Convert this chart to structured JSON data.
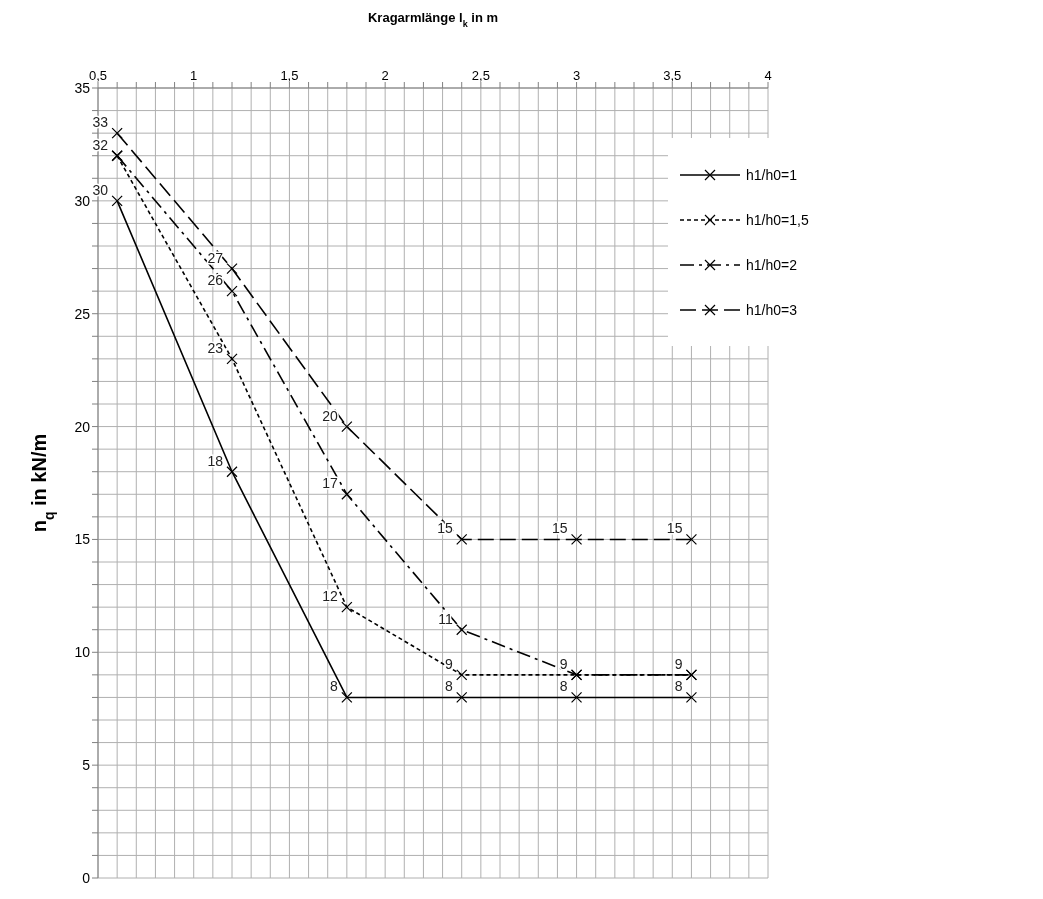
{
  "chart_data": {
    "type": "line",
    "xlabel": "Kragarmlänge l$_{k}$ in m",
    "ylabel": "n$_{q}$ in kN/m",
    "xlim": [
      0.5,
      4
    ],
    "ylim": [
      0,
      35
    ],
    "xticks": [
      {
        "value": 0.5,
        "label": "0,5"
      },
      {
        "value": 0.6,
        "label": null
      },
      {
        "value": 0.7,
        "label": null
      },
      {
        "value": 0.8,
        "label": null
      },
      {
        "value": 0.9,
        "label": null
      },
      1,
      {
        "value": 1.1,
        "label": null
      },
      {
        "value": 1.2,
        "label": null
      },
      {
        "value": 1.3,
        "label": null
      },
      {
        "value": 1.4,
        "label": null
      },
      {
        "value": 1.5,
        "label": "1,5"
      },
      {
        "value": 1.6,
        "label": null
      },
      {
        "value": 1.7,
        "label": null
      },
      {
        "value": 1.8,
        "label": null
      },
      {
        "value": 1.9,
        "label": null
      },
      2,
      {
        "value": 2.1,
        "label": null
      },
      {
        "value": 2.2,
        "label": null
      },
      {
        "value": 2.3,
        "label": null
      },
      {
        "value": 2.4,
        "label": null
      },
      {
        "value": 2.5,
        "label": "2,5"
      },
      {
        "value": 2.6,
        "label": null
      },
      {
        "value": 2.7,
        "label": null
      },
      {
        "value": 2.8,
        "label": null
      },
      {
        "value": 2.9,
        "label": null
      },
      3,
      {
        "value": 3.1,
        "label": null
      },
      {
        "value": 3.2,
        "label": null
      },
      {
        "value": 3.3,
        "label": null
      },
      {
        "value": 3.4,
        "label": null
      },
      {
        "value": 3.5,
        "label": "3,5"
      },
      {
        "value": 3.6,
        "label": null
      },
      {
        "value": 3.7,
        "label": null
      },
      {
        "value": 3.8,
        "label": null
      },
      {
        "value": 3.9,
        "label": null
      },
      4
    ],
    "yticks": [
      0,
      {
        "value": 1,
        "label": null
      },
      {
        "value": 2,
        "label": null
      },
      {
        "value": 3,
        "label": null
      },
      {
        "value": 4,
        "label": null
      },
      5,
      {
        "value": 6,
        "label": null
      },
      {
        "value": 7,
        "label": null
      },
      {
        "value": 8,
        "label": null
      },
      {
        "value": 9,
        "label": null
      },
      10,
      {
        "value": 11,
        "label": null
      },
      {
        "value": 12,
        "label": null
      },
      {
        "value": 13,
        "label": null
      },
      {
        "value": 14,
        "label": null
      },
      15,
      {
        "value": 16,
        "label": null
      },
      {
        "value": 17,
        "label": null
      },
      {
        "value": 18,
        "label": null
      },
      {
        "value": 19,
        "label": null
      },
      20,
      {
        "value": 21,
        "label": null
      },
      {
        "value": 22,
        "label": null
      },
      {
        "value": 23,
        "label": null
      },
      {
        "value": 24,
        "label": null
      },
      25,
      {
        "value": 26,
        "label": null
      },
      {
        "value": 27,
        "label": null
      },
      {
        "value": 28,
        "label": null
      },
      {
        "value": 29,
        "label": null
      },
      30,
      {
        "value": 31,
        "label": null
      },
      {
        "value": 32,
        "label": null
      },
      {
        "value": 33,
        "label": null
      },
      {
        "value": 34,
        "label": null
      },
      35
    ],
    "x": [
      0.6,
      1.2,
      1.8,
      2.4,
      3,
      3.6
    ],
    "grid": true,
    "legend": "top right",
    "marker": "cross",
    "series": [
      {
        "name": "h1/h0=1",
        "color": "#000000",
        "line_style": "solid",
        "values": [
          30,
          18,
          8,
          8,
          8,
          8
        ],
        "value_labels": [
          "30",
          "18",
          "8",
          "8",
          "8",
          "8"
        ]
      },
      {
        "name": "h1/h0=1,5",
        "color": "#000000",
        "line_style": "dotted",
        "values": [
          32,
          23,
          12,
          9,
          9,
          9
        ],
        "value_labels": [
          null,
          "23",
          "12",
          "9",
          null,
          null
        ]
      },
      {
        "name": "h1/h0=2",
        "color": "#000000",
        "line_style": "dashdot",
        "values": [
          32,
          26,
          17,
          11,
          9,
          9
        ],
        "value_labels": [
          "32",
          "26",
          "17",
          "11",
          "9",
          "9"
        ]
      },
      {
        "name": "h1/h0=3",
        "color": "#000000",
        "line_style": "dashed",
        "values": [
          33,
          27,
          20,
          15,
          15,
          15
        ],
        "value_labels": [
          "33",
          "27",
          "20",
          "15",
          "15",
          "15"
        ]
      }
    ]
  }
}
